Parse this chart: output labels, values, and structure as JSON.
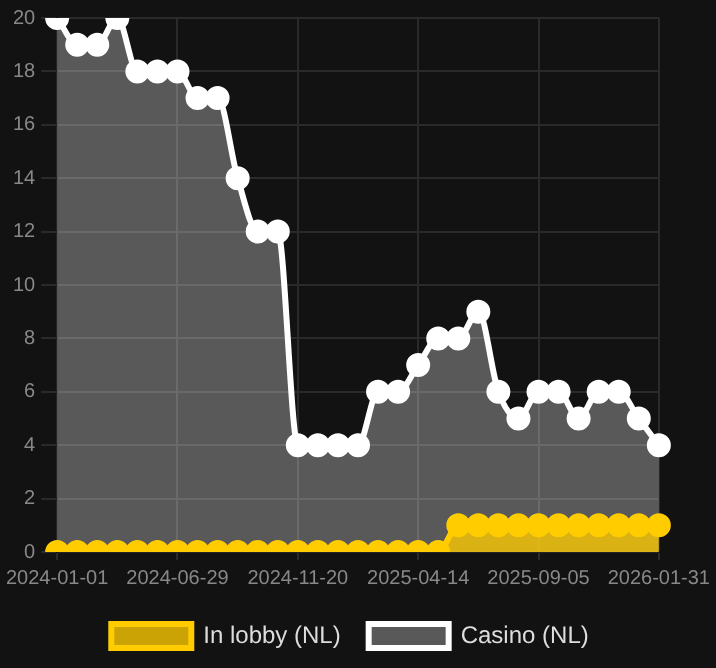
{
  "chart_data": {
    "type": "area",
    "categories": [
      "2024-01-01",
      null,
      null,
      null,
      null,
      null,
      "2024-06-29",
      null,
      null,
      null,
      null,
      null,
      "2024-11-20",
      null,
      null,
      null,
      null,
      null,
      "2025-04-14",
      null,
      null,
      null,
      null,
      null,
      "2025-09-05",
      null,
      null,
      null,
      null,
      null,
      "2026-01-31"
    ],
    "series": [
      {
        "name": "In lobby (NL)",
        "color": "#ffcc00",
        "values": [
          0,
          0,
          0,
          0,
          0,
          0,
          0,
          0,
          0,
          0,
          0,
          0,
          0,
          0,
          0,
          0,
          0,
          0,
          0,
          0,
          1,
          1,
          1,
          1,
          1,
          1,
          1,
          1,
          1,
          1,
          1
        ]
      },
      {
        "name": "Casino (NL)",
        "color": "#ffffff",
        "values": [
          20,
          19,
          19,
          20,
          18,
          18,
          18,
          17,
          17,
          14,
          12,
          12,
          4,
          4,
          4,
          4,
          6,
          6,
          7,
          8,
          8,
          9,
          6,
          5,
          6,
          6,
          5,
          6,
          6,
          5,
          4
        ]
      }
    ],
    "ylim": [
      0,
      20
    ],
    "yticks": [
      0,
      2,
      4,
      6,
      8,
      10,
      12,
      14,
      16,
      18,
      20
    ],
    "grid": true,
    "legend": "bottom",
    "marker": "circle"
  }
}
